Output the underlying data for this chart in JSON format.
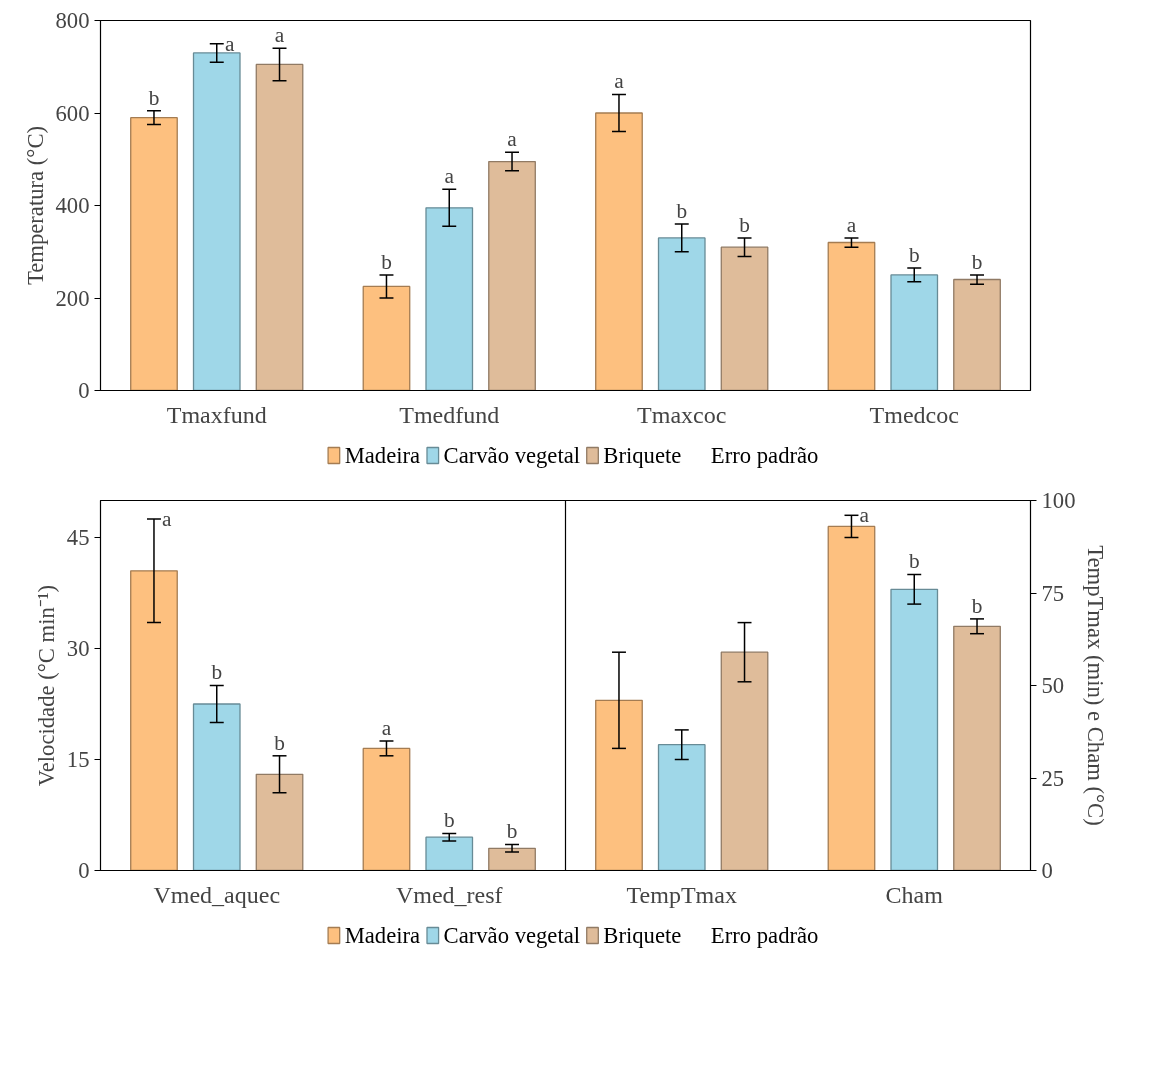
{
  "chart_data": [
    {
      "type": "bar",
      "ylabel": "Temperatura (°C)",
      "categories": [
        "Tmaxfund",
        "Tmedfund",
        "Tmaxcoc",
        "Tmedcoc"
      ],
      "ylim": [
        0,
        800
      ],
      "yticks": [
        0,
        200,
        400,
        600,
        800
      ],
      "grid": false,
      "legend": "bottom",
      "annotations": [
        "Erro padrão"
      ],
      "series": [
        {
          "name": "Madeira",
          "color": "#fdc07f",
          "values": [
            590,
            225,
            600,
            320
          ],
          "errors": [
            15,
            25,
            40,
            10
          ],
          "value_labels": [
            "b",
            "b",
            "a",
            "a"
          ]
        },
        {
          "name": "Carvão vegetal",
          "color": "#9fd7e8",
          "values": [
            730,
            395,
            330,
            250
          ],
          "errors": [
            20,
            40,
            30,
            15
          ],
          "value_labels": [
            "a",
            "a",
            "b",
            "b"
          ]
        },
        {
          "name": "Briquete",
          "color": "#dfbc9a",
          "values": [
            705,
            495,
            310,
            240
          ],
          "errors": [
            35,
            20,
            20,
            10
          ],
          "value_labels": [
            "a",
            "a",
            "b",
            "b"
          ]
        }
      ]
    },
    {
      "type": "bar",
      "ylabel": "Velocidade (°C min⁻¹)",
      "y2label": "TempTmax (min) e Cham (°C)",
      "categories": [
        "Vmed_aquec",
        "Vmed_resf",
        "TempTmax",
        "Cham"
      ],
      "ylim": [
        0,
        50
      ],
      "yticks": [
        0,
        15,
        30,
        45
      ],
      "y2lim": [
        0,
        100
      ],
      "y2ticks": [
        0,
        25,
        50,
        75,
        100
      ],
      "grid": false,
      "legend": "bottom",
      "annotations": [
        "Erro padrão"
      ],
      "series": [
        {
          "name": "Madeira",
          "color": "#fdc07f",
          "values": [
            40.5,
            16.5,
            null,
            null
          ],
          "errors": [
            7,
            1,
            null,
            null
          ],
          "value_labels": [
            "a",
            "a",
            null,
            null
          ]
        },
        {
          "name": "Carvão vegetal",
          "color": "#9fd7e8",
          "values": [
            22.5,
            4.5,
            null,
            null
          ],
          "errors": [
            2.5,
            0.5,
            null,
            null
          ],
          "value_labels": [
            "b",
            "b",
            null,
            null
          ]
        },
        {
          "name": "Briquete",
          "color": "#dfbc9a",
          "values": [
            13,
            3,
            null,
            null
          ],
          "errors": [
            2.5,
            0.5,
            null,
            null
          ],
          "value_labels": [
            "b",
            "b",
            null,
            null
          ]
        },
        {
          "color": "#fdc07f",
          "axis": "y2",
          "values": [
            null,
            null,
            46,
            93
          ],
          "errors": [
            null,
            null,
            13,
            3
          ],
          "value_labels": [
            null,
            null,
            null,
            "a"
          ]
        },
        {
          "color": "#9fd7e8",
          "axis": "y2",
          "values": [
            null,
            null,
            34,
            76
          ],
          "errors": [
            null,
            null,
            4,
            4
          ],
          "value_labels": [
            null,
            null,
            null,
            "b"
          ]
        },
        {
          "color": "#dfbc9a",
          "axis": "y2",
          "values": [
            null,
            null,
            59,
            66
          ],
          "errors": [
            null,
            null,
            8,
            2
          ],
          "value_labels": [
            null,
            null,
            null,
            "b"
          ]
        }
      ]
    }
  ]
}
